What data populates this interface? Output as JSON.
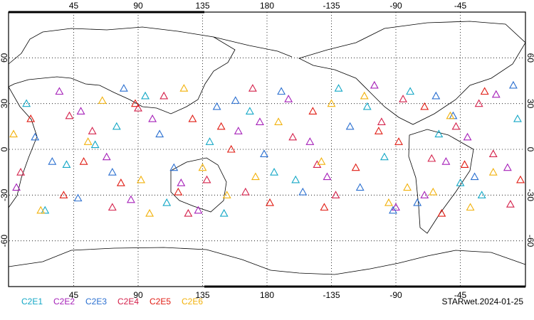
{
  "chart_data": {
    "type": "scatter",
    "annotation": "STARwet.2024-01-25",
    "xlim": [
      0,
      360
    ],
    "ylim": [
      -90,
      90
    ],
    "xticks": [
      45,
      90,
      135,
      180,
      {
        "value": 225,
        "label": "-135"
      },
      {
        "value": 270,
        "label": "-90"
      },
      {
        "value": 315,
        "label": "-45"
      }
    ],
    "yticks": [
      60,
      30,
      0,
      -30,
      -60
    ],
    "grid": true,
    "series": [
      {
        "name": "C2E1",
        "color": "#13a7c6",
        "x": [
          12,
          40,
          75,
          110,
          140,
          168,
          200,
          230,
          262,
          300,
          330,
          355,
          25,
          95,
          185,
          250,
          315,
          60,
          150,
          280
        ],
        "y": [
          30,
          -10,
          15,
          -35,
          5,
          25,
          -20,
          40,
          -5,
          10,
          -30,
          20,
          -40,
          35,
          -15,
          28,
          -22,
          3,
          -42,
          38
        ]
      },
      {
        "name": "C2E2",
        "color": "#a51fb8",
        "x": [
          5,
          35,
          68,
          100,
          132,
          160,
          195,
          222,
          255,
          290,
          320,
          348,
          50,
          120,
          210,
          270,
          340,
          85,
          175,
          305
        ],
        "y": [
          -25,
          38,
          -5,
          20,
          -40,
          12,
          33,
          -18,
          42,
          -30,
          8,
          -12,
          25,
          -22,
          5,
          -38,
          36,
          -33,
          18,
          -8
        ]
      },
      {
        "name": "C2E3",
        "color": "#2a6fd0",
        "x": [
          18,
          48,
          80,
          115,
          145,
          178,
          205,
          238,
          268,
          298,
          325,
          352,
          30,
          105,
          190,
          245,
          310,
          72,
          158,
          285
        ],
        "y": [
          8,
          -32,
          40,
          -12,
          28,
          -3,
          -28,
          15,
          -40,
          35,
          -18,
          42,
          -8,
          10,
          38,
          -25,
          22,
          -15,
          32,
          -35
        ]
      },
      {
        "name": "C2E4",
        "color": "#d4204a",
        "x": [
          8,
          42,
          72,
          108,
          138,
          170,
          198,
          228,
          260,
          295,
          328,
          350,
          58,
          125,
          215,
          275,
          338,
          90,
          165,
          312
        ],
        "y": [
          -15,
          22,
          -38,
          35,
          -20,
          40,
          8,
          -30,
          18,
          -6,
          30,
          -36,
          12,
          -42,
          -10,
          33,
          -3,
          27,
          -28,
          15
        ]
      },
      {
        "name": "C2E5",
        "color": "#e01b12",
        "x": [
          15,
          52,
          88,
          118,
          148,
          182,
          212,
          242,
          272,
          302,
          332,
          357,
          38,
          128,
          220,
          258,
          318,
          78,
          155,
          290
        ],
        "y": [
          20,
          -8,
          30,
          -28,
          15,
          -35,
          25,
          -12,
          5,
          -42,
          38,
          -20,
          -30,
          20,
          -38,
          12,
          -10,
          -22,
          0,
          28
        ]
      },
      {
        "name": "C2E6",
        "color": "#f2b10a",
        "x": [
          22,
          55,
          92,
          122,
          152,
          188,
          218,
          248,
          278,
          308,
          338,
          3,
          65,
          135,
          225,
          265,
          322,
          98,
          172,
          296
        ],
        "y": [
          -40,
          5,
          -20,
          40,
          -30,
          18,
          -8,
          35,
          -25,
          22,
          -15,
          10,
          32,
          -12,
          30,
          -35,
          -38,
          -42,
          -18,
          -28
        ]
      }
    ]
  }
}
